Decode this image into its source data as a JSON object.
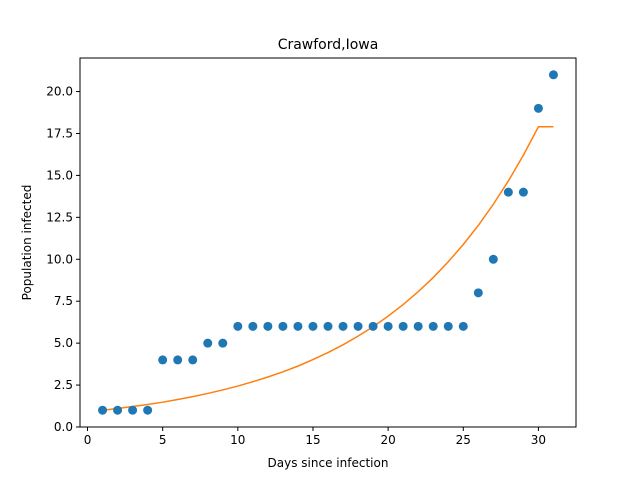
{
  "chart_data": {
    "type": "scatter",
    "title": "Crawford,Iowa",
    "xlabel": "Days since infection",
    "ylabel": "Population infected",
    "xlim": [
      -0.5,
      32.5
    ],
    "ylim": [
      0,
      22
    ],
    "xticks": [
      0,
      5,
      10,
      15,
      20,
      25,
      30
    ],
    "yticks": [
      0.0,
      2.5,
      5.0,
      7.5,
      10.0,
      12.5,
      15.0,
      17.5,
      20.0
    ],
    "ytick_labels": [
      "0.0",
      "2.5",
      "5.0",
      "7.5",
      "10.0",
      "12.5",
      "15.0",
      "17.5",
      "20.0"
    ],
    "grid": false,
    "series": [
      {
        "kind": "scatter",
        "color": "#1f77b4",
        "x": [
          1,
          2,
          3,
          4,
          5,
          6,
          7,
          8,
          9,
          10,
          11,
          12,
          13,
          14,
          15,
          16,
          17,
          18,
          19,
          20,
          21,
          22,
          23,
          24,
          25,
          26,
          27,
          28,
          29,
          30,
          31
        ],
        "y": [
          1,
          1,
          1,
          1,
          4,
          4,
          4,
          5,
          5,
          6,
          6,
          6,
          6,
          6,
          6,
          6,
          6,
          6,
          6,
          6,
          6,
          6,
          6,
          6,
          6,
          8,
          10,
          14,
          14,
          19,
          21
        ]
      },
      {
        "kind": "line",
        "color": "#ff7f0e",
        "x": [
          1,
          2,
          3,
          4,
          5,
          6,
          7,
          8,
          9,
          10,
          11,
          12,
          13,
          14,
          15,
          16,
          17,
          18,
          19,
          20,
          21,
          22,
          23,
          24,
          25,
          26,
          27,
          28,
          29,
          30,
          31
        ],
        "y": [
          1.0,
          1.1,
          1.22,
          1.34,
          1.48,
          1.64,
          1.81,
          2.0,
          2.21,
          2.44,
          2.7,
          2.98,
          3.29,
          3.63,
          4.02,
          4.44,
          4.9,
          5.42,
          5.98,
          6.61,
          7.3,
          8.07,
          8.91,
          9.85,
          10.88,
          12.02,
          13.28,
          14.67,
          16.21,
          17.9,
          17.9
        ]
      }
    ]
  }
}
